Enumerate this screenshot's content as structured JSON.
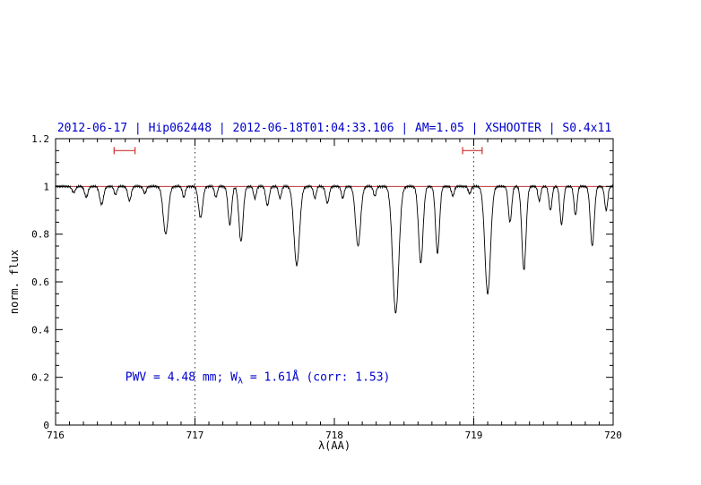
{
  "figure": {
    "background": "#ffffff"
  },
  "chart_data": {
    "type": "line",
    "title": "2012-06-17 | Hip062448 | 2012-06-18T01:04:33.106 | AM=1.05 | XSHOOTER | S0.4x11",
    "title_color": "#0000cc",
    "xlabel": "λ(AA)",
    "ylabel": "norm. flux",
    "xlim": [
      716,
      720
    ],
    "ylim": [
      0,
      1.2
    ],
    "x_ticks": [
      716,
      717,
      718,
      719,
      720
    ],
    "x_tick_labels": [
      "716",
      "717",
      "718",
      "719",
      "720"
    ],
    "x_minor_step": 0.1,
    "y_ticks": [
      0,
      0.2,
      0.4,
      0.6,
      0.8,
      1.0,
      1.2
    ],
    "y_tick_labels": [
      "0",
      "0.2",
      "0.4",
      "0.6",
      "0.8",
      "1",
      "1.2"
    ],
    "y_minor_step": 0.05,
    "grid": false,
    "spectrum_color": "#000000",
    "continuum_level": 1.0,
    "continuum_color": "#c03434",
    "dotted_guides_x": [
      717,
      719
    ],
    "guide_color": "#333333",
    "marker_color": "#cc3333",
    "range_markers": [
      {
        "x_start": 716.42,
        "x_end": 716.57,
        "y": 1.15
      },
      {
        "x_start": 718.92,
        "x_end": 719.06,
        "y": 1.15
      }
    ],
    "annotation": {
      "full_text": "PWV = 4.48 mm; W_λ = 1.61Å (corr: 1.53)",
      "prefix": "PWV = 4.48 mm; W",
      "subscript": "λ",
      "suffix": " = 1.61Å (corr: 1.53)",
      "color": "#0000cc",
      "x": 716.5,
      "y": 0.2
    },
    "absorption_lines": [
      {
        "center": 716.13,
        "depth": 0.025,
        "sigma": 0.012
      },
      {
        "center": 716.22,
        "depth": 0.045,
        "sigma": 0.012
      },
      {
        "center": 716.33,
        "depth": 0.075,
        "sigma": 0.014
      },
      {
        "center": 716.43,
        "depth": 0.035,
        "sigma": 0.01
      },
      {
        "center": 716.53,
        "depth": 0.06,
        "sigma": 0.012
      },
      {
        "center": 716.64,
        "depth": 0.03,
        "sigma": 0.01
      },
      {
        "center": 716.79,
        "depth": 0.2,
        "sigma": 0.018
      },
      {
        "center": 716.92,
        "depth": 0.045,
        "sigma": 0.01
      },
      {
        "center": 717.04,
        "depth": 0.13,
        "sigma": 0.015
      },
      {
        "center": 717.15,
        "depth": 0.045,
        "sigma": 0.01
      },
      {
        "center": 717.25,
        "depth": 0.16,
        "sigma": 0.013
      },
      {
        "center": 717.33,
        "depth": 0.23,
        "sigma": 0.015
      },
      {
        "center": 717.43,
        "depth": 0.05,
        "sigma": 0.01
      },
      {
        "center": 717.52,
        "depth": 0.08,
        "sigma": 0.012
      },
      {
        "center": 717.61,
        "depth": 0.05,
        "sigma": 0.01
      },
      {
        "center": 717.73,
        "depth": 0.33,
        "sigma": 0.02
      },
      {
        "center": 717.86,
        "depth": 0.05,
        "sigma": 0.01
      },
      {
        "center": 717.95,
        "depth": 0.07,
        "sigma": 0.012
      },
      {
        "center": 718.06,
        "depth": 0.05,
        "sigma": 0.01
      },
      {
        "center": 718.17,
        "depth": 0.25,
        "sigma": 0.018
      },
      {
        "center": 718.29,
        "depth": 0.04,
        "sigma": 0.01
      },
      {
        "center": 718.44,
        "depth": 0.53,
        "sigma": 0.022
      },
      {
        "center": 718.62,
        "depth": 0.32,
        "sigma": 0.016
      },
      {
        "center": 718.74,
        "depth": 0.28,
        "sigma": 0.014
      },
      {
        "center": 718.85,
        "depth": 0.04,
        "sigma": 0.01
      },
      {
        "center": 718.97,
        "depth": 0.03,
        "sigma": 0.01
      },
      {
        "center": 719.1,
        "depth": 0.45,
        "sigma": 0.02
      },
      {
        "center": 719.26,
        "depth": 0.15,
        "sigma": 0.012
      },
      {
        "center": 719.36,
        "depth": 0.35,
        "sigma": 0.015
      },
      {
        "center": 719.47,
        "depth": 0.06,
        "sigma": 0.01
      },
      {
        "center": 719.55,
        "depth": 0.1,
        "sigma": 0.011
      },
      {
        "center": 719.63,
        "depth": 0.16,
        "sigma": 0.012
      },
      {
        "center": 719.73,
        "depth": 0.12,
        "sigma": 0.011
      },
      {
        "center": 719.85,
        "depth": 0.25,
        "sigma": 0.014
      },
      {
        "center": 719.95,
        "depth": 0.1,
        "sigma": 0.011
      }
    ]
  }
}
